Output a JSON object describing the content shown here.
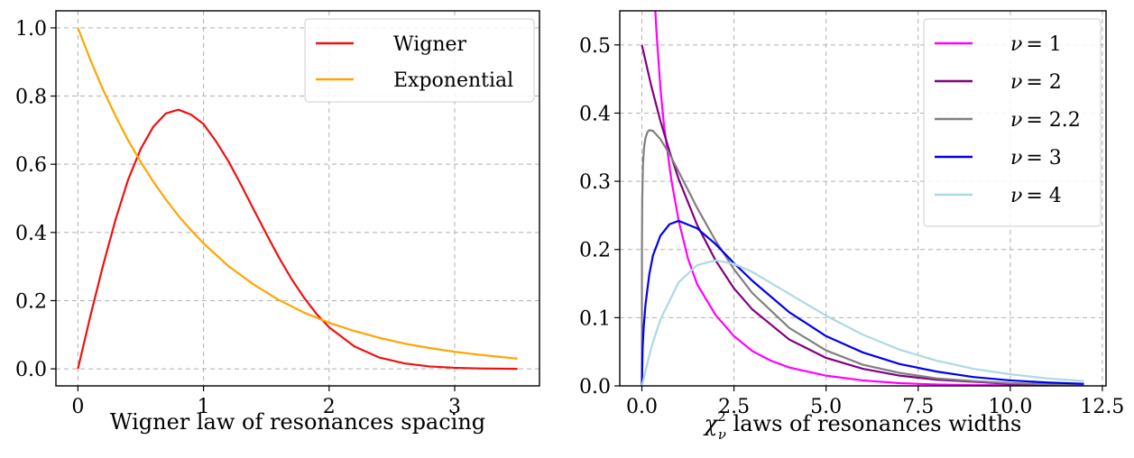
{
  "chart_data": [
    {
      "type": "line",
      "xlabel": "Wigner law of resonances spacing",
      "xlim": [
        -0.175,
        3.675
      ],
      "ylim": [
        -0.05,
        1.05
      ],
      "xticks": [
        0,
        1,
        2,
        3
      ],
      "xtick_labels": [
        "0",
        "1",
        "2",
        "3"
      ],
      "yticks": [
        0.0,
        0.2,
        0.4,
        0.6,
        0.8,
        1.0
      ],
      "ytick_labels": [
        "0.0",
        "0.2",
        "0.4",
        "0.6",
        "0.8",
        "1.0"
      ],
      "grid": true,
      "legend_position": "top-right",
      "series": [
        {
          "name": "Wigner",
          "color": "#ee1111",
          "x": [
            0,
            0.1,
            0.2,
            0.3,
            0.4,
            0.5,
            0.6,
            0.7,
            0.8,
            0.9,
            1.0,
            1.1,
            1.2,
            1.3,
            1.4,
            1.5,
            1.6,
            1.7,
            1.8,
            1.9,
            2.0,
            2.2,
            2.4,
            2.6,
            2.8,
            3.0,
            3.2,
            3.5
          ],
          "y": [
            0,
            0.156,
            0.303,
            0.438,
            0.555,
            0.645,
            0.71,
            0.749,
            0.76,
            0.746,
            0.718,
            0.667,
            0.608,
            0.539,
            0.467,
            0.396,
            0.327,
            0.264,
            0.209,
            0.161,
            0.122,
            0.066,
            0.033,
            0.016,
            0.007,
            0.003,
            0.001,
            0.0
          ]
        },
        {
          "name": "Exponential",
          "color": "#ffa500",
          "x": [
            0,
            0.1,
            0.2,
            0.3,
            0.4,
            0.5,
            0.6,
            0.7,
            0.8,
            0.9,
            1.0,
            1.2,
            1.4,
            1.6,
            1.8,
            2.0,
            2.2,
            2.4,
            2.6,
            2.8,
            3.0,
            3.2,
            3.5
          ],
          "y": [
            1,
            0.905,
            0.819,
            0.741,
            0.67,
            0.607,
            0.549,
            0.497,
            0.449,
            0.407,
            0.368,
            0.301,
            0.247,
            0.202,
            0.165,
            0.135,
            0.111,
            0.091,
            0.074,
            0.061,
            0.05,
            0.041,
            0.03
          ]
        }
      ]
    },
    {
      "type": "line",
      "xlabel_prefix": "χ",
      "xlabel_sup": "2",
      "xlabel_sub": "ν",
      "xlabel_suffix": " laws of resonances widths",
      "xlim": [
        -0.6,
        12.6
      ],
      "ylim": [
        0,
        0.55
      ],
      "xticks": [
        0,
        2.5,
        5,
        7.5,
        10,
        12.5
      ],
      "xtick_labels": [
        "0.0",
        "2.5",
        "5.0",
        "7.5",
        "10.0",
        "12.5"
      ],
      "yticks": [
        0,
        0.1,
        0.2,
        0.3,
        0.4,
        0.5
      ],
      "ytick_labels": [
        "0.0",
        "0.1",
        "0.2",
        "0.3",
        "0.4",
        "0.5"
      ],
      "grid": true,
      "legend_position": "top-right",
      "series": [
        {
          "name": "ν = 1",
          "label_math": "ν",
          "label_value": "= 1",
          "color": "#ff00ff",
          "x": [
            0.3,
            0.35,
            0.4,
            0.5,
            0.6,
            0.8,
            1.0,
            1.25,
            1.5,
            2.0,
            2.5,
            3.0,
            3.5,
            4.0,
            5.0,
            6.0,
            7.0,
            8.0,
            9.0,
            10.0,
            12.0
          ],
          "y": [
            0.627,
            0.565,
            0.516,
            0.439,
            0.382,
            0.302,
            0.242,
            0.187,
            0.149,
            0.104,
            0.073,
            0.051,
            0.037,
            0.027,
            0.015,
            0.008,
            0.004,
            0.002,
            0.001,
            0.001,
            0.0
          ]
        },
        {
          "name": "ν = 2",
          "label_math": "ν",
          "label_value": "= 2",
          "color": "#800080",
          "x": [
            0,
            0.25,
            0.5,
            0.75,
            1.0,
            1.5,
            2.0,
            2.5,
            3.0,
            4.0,
            5.0,
            6.0,
            7.0,
            8.0,
            9.0,
            10.0,
            12.0
          ],
          "y": [
            0.5,
            0.441,
            0.389,
            0.344,
            0.303,
            0.236,
            0.184,
            0.143,
            0.112,
            0.068,
            0.041,
            0.025,
            0.015,
            0.009,
            0.006,
            0.003,
            0.001
          ]
        },
        {
          "name": "ν = 2.2",
          "label_math": "ν",
          "label_value": "= 2.2",
          "color": "#808080",
          "x": [
            0,
            0.002,
            0.01,
            0.03,
            0.06,
            0.1,
            0.15,
            0.2,
            0.3,
            0.5,
            0.75,
            1.0,
            1.5,
            2.0,
            2.5,
            3.0,
            4.0,
            5.0,
            6.0,
            7.0,
            8.0,
            9.0,
            10.0,
            12.0
          ],
          "y": [
            0,
            0.2,
            0.275,
            0.325,
            0.35,
            0.364,
            0.372,
            0.375,
            0.374,
            0.362,
            0.34,
            0.314,
            0.261,
            0.213,
            0.171,
            0.136,
            0.085,
            0.052,
            0.031,
            0.019,
            0.011,
            0.007,
            0.004,
            0.001
          ]
        },
        {
          "name": "ν = 3",
          "label_math": "ν",
          "label_value": "= 3",
          "color": "#0000ee",
          "x": [
            0,
            0.02,
            0.05,
            0.1,
            0.2,
            0.3,
            0.5,
            0.75,
            1.0,
            1.5,
            2.0,
            2.5,
            3.0,
            4.0,
            5.0,
            6.0,
            7.0,
            8.0,
            9.0,
            10.0,
            11.0,
            12.0
          ],
          "y": [
            0,
            0.055,
            0.087,
            0.12,
            0.163,
            0.191,
            0.22,
            0.237,
            0.242,
            0.231,
            0.208,
            0.18,
            0.154,
            0.108,
            0.073,
            0.049,
            0.032,
            0.021,
            0.013,
            0.008,
            0.005,
            0.003
          ]
        },
        {
          "name": "ν = 4",
          "label_math": "ν",
          "label_value": "= 4",
          "color": "#add8e6",
          "x": [
            0,
            0.25,
            0.5,
            1.0,
            1.5,
            2.0,
            2.5,
            3.0,
            4.0,
            5.0,
            6.0,
            7.0,
            8.0,
            9.0,
            10.0,
            11.0,
            12.0
          ],
          "y": [
            0,
            0.055,
            0.097,
            0.152,
            0.177,
            0.184,
            0.179,
            0.167,
            0.135,
            0.103,
            0.075,
            0.053,
            0.037,
            0.025,
            0.017,
            0.011,
            0.007
          ]
        }
      ]
    }
  ]
}
